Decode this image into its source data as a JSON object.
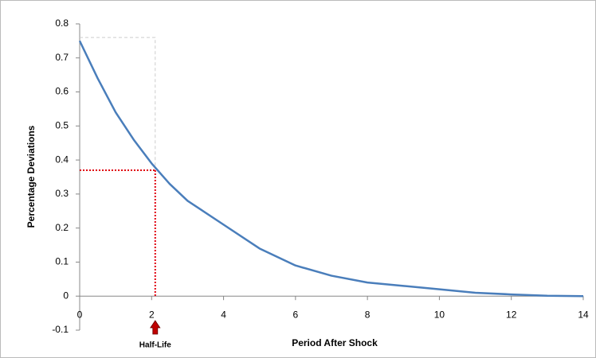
{
  "chart_data": {
    "type": "line",
    "x_label": "Period After Shock",
    "y_label": "Percentage Deviations",
    "x": [
      0,
      0.5,
      1,
      1.5,
      2,
      2.5,
      3,
      4,
      5,
      6,
      7,
      8,
      9,
      10,
      11,
      12,
      13,
      14
    ],
    "series": [
      {
        "color": "#4a7ebb",
        "values": [
          0.75,
          0.64,
          0.54,
          0.46,
          0.39,
          0.33,
          0.28,
          0.21,
          0.14,
          0.09,
          0.06,
          0.04,
          0.03,
          0.02,
          0.01,
          0.005,
          0.001,
          0
        ]
      }
    ],
    "xlim": [
      0,
      14
    ],
    "xticks": [
      0,
      2,
      4,
      6,
      8,
      10,
      12,
      14
    ],
    "ylim": [
      -0.1,
      0.8
    ],
    "yticks": [
      -0.1,
      0,
      0.1,
      0.2,
      0.3,
      0.4,
      0.5,
      0.6,
      0.7,
      0.8
    ],
    "annotation": {
      "label": "Half-Life",
      "x": 2.1,
      "y": 0.37,
      "box_top": 0.76,
      "color": "#e0000f"
    }
  }
}
